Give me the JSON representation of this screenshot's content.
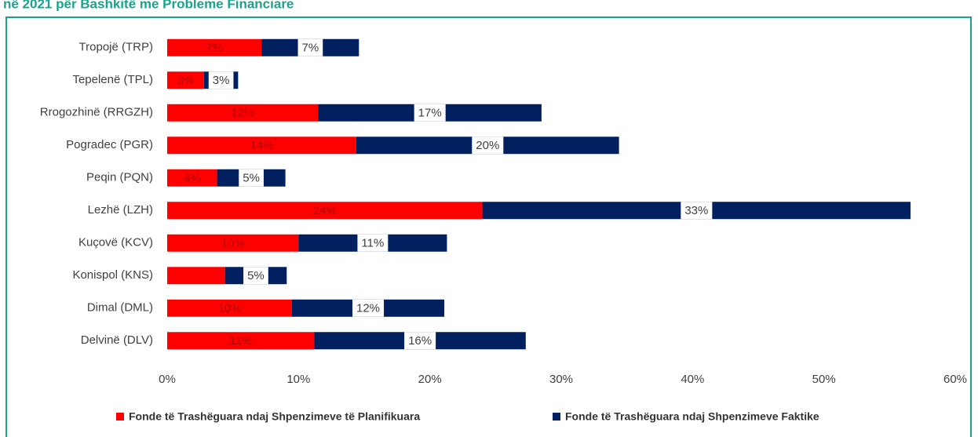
{
  "chart_data": {
    "type": "stacked-barh",
    "title": "në 2021 për Bashkitë me Probleme Financiare",
    "categories": [
      "Tropojë (TRP)",
      "Tepelenë (TPL)",
      "Rrogozhinë (RRGZH)",
      "Pogradec (PGR)",
      "Peqin (PQN)",
      "Lezhë (LZH)",
      "Kuçovë (KCV)",
      "Konispol (KNS)",
      "Dimal (DML)",
      "Delvinë (DLV)"
    ],
    "series": [
      {
        "name": "Fonde të Trashëguara ndaj Shpenzimeve të Planifikuara",
        "color": "#ff0000",
        "values": [
          7.2,
          2.8,
          11.5,
          14.4,
          3.8,
          24.0,
          10.0,
          4.4,
          9.5,
          11.2
        ],
        "value_labels": [
          "7%",
          "3%",
          "12%",
          "14%",
          "4%",
          "24%",
          "10%",
          null,
          "10%",
          "11%"
        ]
      },
      {
        "name": "Fonde të Trashëguara ndaj Shpenzimeve Faktike",
        "color": "#002060",
        "values": [
          7.4,
          2.6,
          17.0,
          20.0,
          5.2,
          32.6,
          11.3,
          4.7,
          11.6,
          16.1
        ],
        "value_labels": [
          "7%",
          "3%",
          "17%",
          "20%",
          "5%",
          "33%",
          "11%",
          "5%",
          "12%",
          "16%"
        ]
      }
    ],
    "xlim": [
      0,
      60
    ],
    "xticks": [
      {
        "value": 0,
        "label": "0%"
      },
      {
        "value": 10,
        "label": "10%"
      },
      {
        "value": 20,
        "label": "20%"
      },
      {
        "value": 30,
        "label": "30%"
      },
      {
        "value": 40,
        "label": "40%"
      },
      {
        "value": 50,
        "label": "50%"
      },
      {
        "value": 60,
        "label": "60%"
      }
    ],
    "legend": "bottom"
  }
}
